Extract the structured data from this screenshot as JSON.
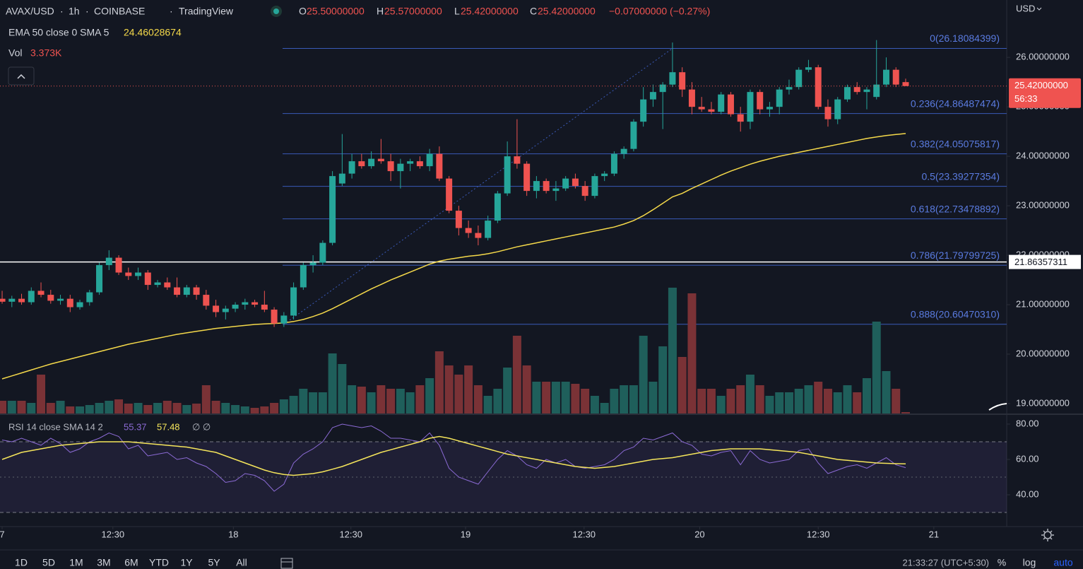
{
  "header": {
    "symbol": "AVAX/USD",
    "interval": "1h",
    "exchange": "COINBASE",
    "source": "TradingView",
    "o_label": "O",
    "o": "25.50000000",
    "h_label": "H",
    "h": "25.57000000",
    "l_label": "L",
    "l": "25.42000000",
    "c_label": "C",
    "c": "25.42000000",
    "change": "−0.07000000 (−0.27%)",
    "vol_value": "3.373K",
    "currency": "USD",
    "price_label": "25.42000000",
    "countdown": "56:33",
    "rsi_symbols": "∅ ∅"
  },
  "toolbar": {
    "ranges": [
      "1D",
      "5D",
      "1M",
      "3M",
      "6M",
      "YTD",
      "1Y",
      "5Y",
      "All"
    ],
    "clock": "21:33:27 (UTC+5:30)",
    "percent": "%",
    "log": "log",
    "auto": "auto"
  },
  "chart_data": [
    {
      "type": "candlestick",
      "up_color": "#26a69a",
      "down_color": "#ef5350",
      "grid": false,
      "xlim": [
        -0.22,
        103.4
      ],
      "xticks": [
        {
          "value": 0,
          "label": "7"
        },
        {
          "value": 11.4,
          "label": "12:30"
        },
        {
          "value": 23.8,
          "label": "18"
        },
        {
          "value": 35.9,
          "label": "12:30"
        },
        {
          "value": 47.7,
          "label": "19"
        },
        {
          "value": 59.9,
          "label": "12:30"
        },
        {
          "value": 71.8,
          "label": "20"
        },
        {
          "value": 84,
          "label": "12:30"
        },
        {
          "value": 95.9,
          "label": "21"
        }
      ],
      "ylim": [
        18.8,
        27.16
      ],
      "yticks": [
        {
          "value": 26,
          "label": "26.00000000"
        },
        {
          "value": 25,
          "label": "25.00000000"
        },
        {
          "value": 24,
          "label": "24.00000000"
        },
        {
          "value": 23,
          "label": "23.00000000"
        },
        {
          "value": 22,
          "label": "22.00000000"
        },
        {
          "value": 21,
          "label": "21.00000000"
        },
        {
          "value": 20,
          "label": "20.00000000"
        },
        {
          "value": 19,
          "label": "19.00000000"
        }
      ],
      "ohlc": [
        [
          21.12,
          21.28,
          21.02,
          21.06
        ],
        [
          21.06,
          21.18,
          20.95,
          21.12
        ],
        [
          21.12,
          21.22,
          21.0,
          21.05
        ],
        [
          21.05,
          21.35,
          21.0,
          21.28
        ],
        [
          21.28,
          21.45,
          21.15,
          21.2
        ],
        [
          21.2,
          21.3,
          21.02,
          21.08
        ],
        [
          21.08,
          21.2,
          21.0,
          21.12
        ],
        [
          21.12,
          21.2,
          20.85,
          20.95
        ],
        [
          20.95,
          21.1,
          20.9,
          21.05
        ],
        [
          21.05,
          21.3,
          20.98,
          21.25
        ],
        [
          21.25,
          21.85,
          21.2,
          21.8
        ],
        [
          21.8,
          22.1,
          21.7,
          21.95
        ],
        [
          21.95,
          22.0,
          21.6,
          21.65
        ],
        [
          21.65,
          21.75,
          21.5,
          21.58
        ],
        [
          21.58,
          21.75,
          21.5,
          21.65
        ],
        [
          21.65,
          21.7,
          21.3,
          21.4
        ],
        [
          21.4,
          21.5,
          21.35,
          21.45
        ],
        [
          21.45,
          21.55,
          21.3,
          21.35
        ],
        [
          21.35,
          21.55,
          21.15,
          21.2
        ],
        [
          21.2,
          21.4,
          21.15,
          21.35
        ],
        [
          21.35,
          21.4,
          21.1,
          21.2
        ],
        [
          21.2,
          21.3,
          20.9,
          20.98
        ],
        [
          20.98,
          21.1,
          20.75,
          20.85
        ],
        [
          20.85,
          20.98,
          20.7,
          20.92
        ],
        [
          20.92,
          21.05,
          20.85,
          21.0
        ],
        [
          21.0,
          21.12,
          20.9,
          21.05
        ],
        [
          21.05,
          21.1,
          20.95,
          21.0
        ],
        [
          21.0,
          21.28,
          20.85,
          20.9
        ],
        [
          20.9,
          20.95,
          20.55,
          20.62
        ],
        [
          20.62,
          20.85,
          20.55,
          20.78
        ],
        [
          20.78,
          21.45,
          20.7,
          21.35
        ],
        [
          21.35,
          21.85,
          21.3,
          21.8
        ],
        [
          21.8,
          22.0,
          21.65,
          21.85
        ],
        [
          21.85,
          22.3,
          21.8,
          22.25
        ],
        [
          22.25,
          23.7,
          22.2,
          23.6
        ],
        [
          23.45,
          24.45,
          23.4,
          23.65
        ],
        [
          23.65,
          24.05,
          23.55,
          23.9
        ],
        [
          23.9,
          24.05,
          23.75,
          23.8
        ],
        [
          23.8,
          24.1,
          23.75,
          23.95
        ],
        [
          23.95,
          24.35,
          23.85,
          23.9
        ],
        [
          23.9,
          24.05,
          23.5,
          23.7
        ],
        [
          23.7,
          23.95,
          23.35,
          23.85
        ],
        [
          23.85,
          23.95,
          23.7,
          23.9
        ],
        [
          23.9,
          24.0,
          23.75,
          23.8
        ],
        [
          23.8,
          24.15,
          23.7,
          24.05
        ],
        [
          24.05,
          24.2,
          23.5,
          23.55
        ],
        [
          23.55,
          23.6,
          22.85,
          22.9
        ],
        [
          22.9,
          23.0,
          22.4,
          22.55
        ],
        [
          22.55,
          22.7,
          22.35,
          22.45
        ],
        [
          22.45,
          22.6,
          22.2,
          22.35
        ],
        [
          22.35,
          22.8,
          22.3,
          22.7
        ],
        [
          22.7,
          23.3,
          22.65,
          23.25
        ],
        [
          23.25,
          24.3,
          23.2,
          24.0
        ],
        [
          24.0,
          24.75,
          23.75,
          23.85
        ],
        [
          23.85,
          23.9,
          23.2,
          23.3
        ],
        [
          23.3,
          23.6,
          23.15,
          23.5
        ],
        [
          23.5,
          23.55,
          23.25,
          23.3
        ],
        [
          23.3,
          23.5,
          23.1,
          23.35
        ],
        [
          23.35,
          23.6,
          23.3,
          23.55
        ],
        [
          23.55,
          23.65,
          23.35,
          23.4
        ],
        [
          23.4,
          23.5,
          23.1,
          23.2
        ],
        [
          23.2,
          23.65,
          23.15,
          23.6
        ],
        [
          23.6,
          23.7,
          23.5,
          23.65
        ],
        [
          23.65,
          24.1,
          23.6,
          24.05
        ],
        [
          24.05,
          24.2,
          23.95,
          24.15
        ],
        [
          24.15,
          24.75,
          24.1,
          24.7
        ],
        [
          24.7,
          25.4,
          24.6,
          25.15
        ],
        [
          25.15,
          25.45,
          25.0,
          25.3
        ],
        [
          25.3,
          25.5,
          24.55,
          25.45
        ],
        [
          25.45,
          26.3,
          25.4,
          25.7
        ],
        [
          25.7,
          25.8,
          25.2,
          25.35
        ],
        [
          25.35,
          25.5,
          24.85,
          25.0
        ],
        [
          25.0,
          25.2,
          24.9,
          24.95
        ],
        [
          24.95,
          25.1,
          24.85,
          24.9
        ],
        [
          24.9,
          25.3,
          24.85,
          25.25
        ],
        [
          25.25,
          25.3,
          24.8,
          24.85
        ],
        [
          24.85,
          25.0,
          24.5,
          24.7
        ],
        [
          24.7,
          25.35,
          24.55,
          25.3
        ],
        [
          25.3,
          25.35,
          24.85,
          24.95
        ],
        [
          24.95,
          25.1,
          24.8,
          25.0
        ],
        [
          25.0,
          25.4,
          24.85,
          25.35
        ],
        [
          25.35,
          25.55,
          25.25,
          25.4
        ],
        [
          25.4,
          25.8,
          25.35,
          25.75
        ],
        [
          25.75,
          25.95,
          25.7,
          25.8
        ],
        [
          25.8,
          25.85,
          24.95,
          25.0
        ],
        [
          25.0,
          25.15,
          24.6,
          24.75
        ],
        [
          24.75,
          25.2,
          24.65,
          25.15
        ],
        [
          25.15,
          25.45,
          25.1,
          25.4
        ],
        [
          25.4,
          25.5,
          25.25,
          25.3
        ],
        [
          25.3,
          25.4,
          24.95,
          25.35
        ],
        [
          25.2,
          26.35,
          25.15,
          25.45
        ],
        [
          25.45,
          26.0,
          25.4,
          25.75
        ],
        [
          25.75,
          25.8,
          25.4,
          25.45
        ],
        [
          25.5,
          25.57,
          25.42,
          25.42
        ]
      ],
      "series": [
        {
          "name": "EMA 50 close 0 SMA 5",
          "color": "#f5d94a",
          "values": [
            19.5,
            19.56,
            19.62,
            19.68,
            19.74,
            19.8,
            19.85,
            19.9,
            19.95,
            20.0,
            20.05,
            20.1,
            20.15,
            20.2,
            20.24,
            20.28,
            20.32,
            20.36,
            20.4,
            20.43,
            20.46,
            20.49,
            20.52,
            20.54,
            20.56,
            20.58,
            20.6,
            20.61,
            20.62,
            20.63,
            20.66,
            20.7,
            20.76,
            20.83,
            20.92,
            21.02,
            21.12,
            21.22,
            21.32,
            21.41,
            21.5,
            21.58,
            21.66,
            21.74,
            21.82,
            21.88,
            21.92,
            21.95,
            21.98,
            22.0,
            22.03,
            22.07,
            22.12,
            22.17,
            22.21,
            22.25,
            22.29,
            22.33,
            22.37,
            22.41,
            22.45,
            22.49,
            22.53,
            22.57,
            22.63,
            22.7,
            22.8,
            22.92,
            23.05,
            23.18,
            23.25,
            23.35,
            23.44,
            23.53,
            23.62,
            23.7,
            23.77,
            23.84,
            23.9,
            23.95,
            24.0,
            24.04,
            24.08,
            24.12,
            24.16,
            24.2,
            24.24,
            24.28,
            24.32,
            24.36,
            24.39,
            24.42,
            24.44,
            24.46028674
          ]
        }
      ],
      "fib_color": "#3a5ab8",
      "fib_text_color": "#5a7be0",
      "fib_levels": [
        {
          "label": "0(26.18084399)",
          "value": 26.18084399
        },
        {
          "label": "0.236(24.86487474)",
          "value": 24.86487474
        },
        {
          "label": "0.382(24.05075817)",
          "value": 24.05075817
        },
        {
          "label": "0.5(23.39277354)",
          "value": 23.39277354
        },
        {
          "label": "0.618(22.73478892)",
          "value": 22.73478892
        },
        {
          "label": "0.786(21.79799725)",
          "value": 21.79799725
        },
        {
          "label": "0.888(20.60470310)",
          "value": 20.6047031
        }
      ],
      "hline": {
        "value": 21.86357311,
        "label": "21.86357311"
      }
    },
    {
      "type": "bar",
      "name": "Vol",
      "up_color": "#1f5f5b",
      "down_color": "#7a3236",
      "ylim": [
        0,
        510000
      ],
      "values": [
        30600,
        30600,
        30600,
        25500,
        93500,
        25500,
        30600,
        17000,
        17000,
        20400,
        25500,
        30600,
        34000,
        23800,
        25500,
        20400,
        25500,
        30600,
        25500,
        20400,
        23800,
        68000,
        30600,
        25500,
        20400,
        17000,
        13600,
        17000,
        25500,
        34000,
        42500,
        59500,
        51000,
        51000,
        144500,
        119000,
        68000,
        64600,
        51000,
        68000,
        59500,
        59500,
        51000,
        68000,
        85000,
        149600,
        115600,
        93500,
        115600,
        68000,
        42500,
        59500,
        110500,
        187000,
        115600,
        76500,
        76500,
        76500,
        76500,
        71400,
        59500,
        42500,
        25500,
        59500,
        68000,
        68000,
        187000,
        76500,
        161500,
        302600,
        136000,
        289000,
        59500,
        59500,
        42500,
        59500,
        68000,
        93500,
        68000,
        42500,
        51000,
        51000,
        59500,
        68000,
        76500,
        59500,
        51000,
        68000,
        51000,
        85000,
        221000,
        102000,
        59500,
        3373
      ]
    },
    {
      "type": "line",
      "ylim": [
        22,
        84
      ],
      "yticks": [
        {
          "value": 80,
          "label": "80.00"
        },
        {
          "value": 60,
          "label": "60.00"
        },
        {
          "value": 40,
          "label": "40.00"
        }
      ],
      "bands": [
        30,
        70
      ],
      "midline": 50,
      "band_color": "#7e57c2",
      "series": [
        {
          "name": "RSI 14 close SMA 14 2",
          "color": "#8c6bd6",
          "values": [
            71,
            70,
            72,
            70,
            68,
            72,
            69,
            64,
            66,
            70,
            72,
            75,
            73,
            66,
            68,
            62,
            63,
            64,
            60,
            61,
            58,
            56,
            52,
            47,
            48,
            52,
            51,
            48,
            42,
            46,
            58,
            63,
            66,
            70,
            78,
            80,
            79,
            78,
            79,
            76,
            72,
            72,
            71,
            70,
            75,
            68,
            55,
            50,
            48,
            46,
            53,
            60,
            65,
            62,
            57,
            55,
            60,
            58,
            60,
            56,
            55,
            56,
            57,
            60,
            65,
            67,
            72,
            71,
            73,
            75,
            70,
            68,
            63,
            62,
            64,
            65,
            57,
            65,
            60,
            58,
            59,
            60,
            65,
            66,
            58,
            52,
            54,
            56,
            57,
            55,
            58,
            61,
            57,
            55.37
          ]
        },
        {
          "name": "SMA",
          "color": "#f5e55b",
          "values": [
            60,
            62,
            64,
            65,
            66,
            67,
            68,
            68.5,
            69,
            69.5,
            70,
            70,
            70,
            70,
            69.5,
            69,
            68.5,
            68,
            67.5,
            67,
            66,
            65,
            64,
            62,
            60,
            58,
            56,
            54,
            52.5,
            51.5,
            51,
            51.5,
            52,
            53,
            54.5,
            56,
            58,
            60,
            62,
            64,
            65.5,
            67,
            68.5,
            70,
            72,
            73,
            72,
            70.5,
            69,
            67.5,
            66,
            64.5,
            63,
            62,
            61,
            60,
            59,
            58,
            57,
            56,
            55.5,
            55,
            55.5,
            56,
            57,
            58,
            59,
            60,
            60.5,
            61,
            62,
            63,
            64,
            65,
            65.5,
            66,
            66,
            66,
            66,
            65.5,
            65,
            64.5,
            64,
            63,
            62,
            61,
            60,
            59.5,
            59,
            58.5,
            58,
            57.8,
            57.6,
            57.48
          ]
        }
      ]
    }
  ]
}
